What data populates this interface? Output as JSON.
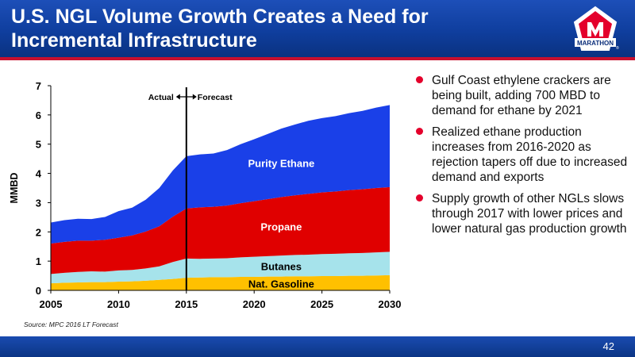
{
  "header": {
    "title_line1": "U.S. NGL Volume Growth Creates a Need for",
    "title_line2": "Incremental Infrastructure",
    "logo_text": "MARATHON",
    "logo_registered": "®",
    "accent": "#c8102e",
    "background": "#0f3e9e"
  },
  "bullets": [
    "Gulf Coast ethylene crackers are being built, adding 700 MBD to demand for ethane by 2021",
    "Realized ethane production increases from 2016-2020 as rejection tapers off due to increased demand and exports",
    "Supply growth of other NGLs slows through 2017 with lower prices and lower natural gas production growth"
  ],
  "source": "Source:  MPC 2016 LT Forecast",
  "page_number": "42",
  "chart_data": {
    "type": "area",
    "stacked": true,
    "x": [
      2005,
      2006,
      2007,
      2008,
      2009,
      2010,
      2011,
      2012,
      2013,
      2014,
      2015,
      2016,
      2017,
      2018,
      2019,
      2020,
      2021,
      2022,
      2023,
      2024,
      2025,
      2026,
      2027,
      2028,
      2029,
      2030
    ],
    "series": [
      {
        "name": "Nat. Gasoline",
        "color": "#ffc000",
        "values": [
          0.24,
          0.26,
          0.27,
          0.28,
          0.28,
          0.3,
          0.31,
          0.33,
          0.36,
          0.39,
          0.43,
          0.44,
          0.45,
          0.45,
          0.46,
          0.46,
          0.47,
          0.47,
          0.48,
          0.48,
          0.49,
          0.49,
          0.5,
          0.5,
          0.51,
          0.52
        ]
      },
      {
        "name": "Butanes",
        "color": "#a6e3eb",
        "values": [
          0.32,
          0.34,
          0.36,
          0.37,
          0.36,
          0.38,
          0.39,
          0.42,
          0.46,
          0.58,
          0.66,
          0.64,
          0.64,
          0.65,
          0.67,
          0.69,
          0.7,
          0.72,
          0.73,
          0.74,
          0.75,
          0.76,
          0.77,
          0.78,
          0.79,
          0.8
        ]
      },
      {
        "name": "Propane",
        "color": "#e00000",
        "values": [
          1.04,
          1.06,
          1.07,
          1.05,
          1.09,
          1.12,
          1.18,
          1.26,
          1.37,
          1.55,
          1.71,
          1.76,
          1.77,
          1.8,
          1.85,
          1.9,
          1.95,
          2.0,
          2.04,
          2.08,
          2.11,
          2.13,
          2.16,
          2.18,
          2.2,
          2.21
        ]
      },
      {
        "name": "Purity Ethane",
        "color": "#1a40e8",
        "values": [
          0.72,
          0.74,
          0.75,
          0.74,
          0.78,
          0.91,
          0.95,
          1.09,
          1.31,
          1.58,
          1.79,
          1.81,
          1.82,
          1.9,
          2.02,
          2.12,
          2.23,
          2.34,
          2.42,
          2.5,
          2.54,
          2.58,
          2.63,
          2.68,
          2.75,
          2.81
        ]
      }
    ],
    "ylabel": "MMBD",
    "ylim": [
      0,
      7
    ],
    "yticks": [
      0,
      1,
      2,
      3,
      4,
      5,
      6,
      7
    ],
    "xlim": [
      2005,
      2030
    ],
    "xticks": [
      2005,
      2010,
      2015,
      2020,
      2025,
      2030
    ],
    "grid": false,
    "divider_x": 2015,
    "annotations": {
      "actual": "Actual",
      "forecast": "Forecast"
    },
    "legend": "inline"
  }
}
